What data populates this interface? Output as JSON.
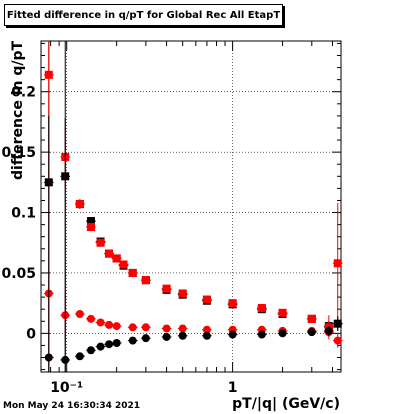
{
  "chart_data": {
    "type": "scatter",
    "title": "Fitted difference in q/pT for Global Rec All EtapT",
    "xlabel": "pT/|q| (GeV/c)",
    "ylabel": "difference in q/pT",
    "x_scale": "log",
    "xlim": [
      0.07,
      4.5
    ],
    "ylim": [
      -0.032,
      0.242
    ],
    "grid": true,
    "x_tick_labels": [
      "10⁻¹",
      "1"
    ],
    "y_tick_labels": [
      "0",
      "0.05",
      "0.1",
      "0.15",
      "0.2"
    ],
    "series": [
      {
        "color": "#000000",
        "marker": "square",
        "x": [
          0.078,
          0.098,
          0.12,
          0.14,
          0.16,
          0.18,
          0.2,
          0.22,
          0.25,
          0.3,
          0.4,
          0.5,
          0.7,
          1.0,
          1.5,
          2.0,
          3.0,
          3.8,
          4.3
        ],
        "y": [
          0.125,
          0.13,
          0.107,
          0.093,
          0.076,
          0.066,
          0.062,
          0.056,
          0.05,
          0.044,
          0.036,
          0.032,
          0.027,
          0.024,
          0.02,
          0.016,
          0.012,
          0.006,
          0.008
        ],
        "yerr": [
          0.2,
          0.2,
          0.004,
          0.003,
          0.002,
          0.002,
          0.002,
          0.002,
          0.001,
          0.001,
          0.001,
          0.001,
          0.001,
          0.001,
          0.001,
          0.001,
          0.002,
          0.004,
          0.006
        ]
      },
      {
        "color": "#ff0000",
        "marker": "square",
        "x": [
          0.078,
          0.098,
          0.12,
          0.14,
          0.16,
          0.18,
          0.2,
          0.22,
          0.25,
          0.3,
          0.4,
          0.5,
          0.7,
          1.0,
          1.5,
          2.0,
          3.0,
          3.8,
          4.3
        ],
        "y": [
          0.214,
          0.146,
          0.107,
          0.088,
          0.075,
          0.066,
          0.062,
          0.057,
          0.05,
          0.044,
          0.037,
          0.033,
          0.028,
          0.025,
          0.021,
          0.017,
          0.012,
          0.005,
          0.058
        ],
        "yerr": [
          0.1,
          0.025,
          0.004,
          0.003,
          0.002,
          0.002,
          0.002,
          0.002,
          0.001,
          0.001,
          0.001,
          0.001,
          0.001,
          0.001,
          0.001,
          0.002,
          0.003,
          0.01,
          0.05
        ]
      },
      {
        "color": "#ff0000",
        "marker": "circle",
        "x": [
          0.078,
          0.098,
          0.12,
          0.14,
          0.16,
          0.18,
          0.2,
          0.25,
          0.3,
          0.4,
          0.5,
          0.7,
          1.0,
          1.5,
          2.0,
          3.0,
          3.8,
          4.3
        ],
        "y": [
          0.033,
          0.015,
          0.016,
          0.012,
          0.009,
          0.007,
          0.006,
          0.005,
          0.005,
          0.004,
          0.004,
          0.003,
          0.003,
          0.003,
          0.002,
          0.002,
          0.001,
          -0.006
        ],
        "yerr": [
          0.08,
          0.02,
          0.003,
          0.002,
          0.002,
          0.001,
          0.001,
          0.001,
          0.001,
          0.001,
          0.001,
          0.001,
          0.001,
          0.001,
          0.001,
          0.002,
          0.004,
          0.006
        ]
      },
      {
        "color": "#000000",
        "marker": "circle",
        "x": [
          0.078,
          0.098,
          0.12,
          0.14,
          0.16,
          0.18,
          0.2,
          0.25,
          0.3,
          0.4,
          0.5,
          0.7,
          1.0,
          1.5,
          2.0,
          3.0,
          3.8,
          4.3
        ],
        "y": [
          -0.02,
          -0.022,
          -0.019,
          -0.014,
          -0.011,
          -0.009,
          -0.008,
          -0.006,
          -0.004,
          -0.003,
          -0.002,
          -0.002,
          -0.001,
          -0.001,
          0.0,
          0.001,
          0.002,
          0.008
        ],
        "yerr": [
          0.2,
          0.2,
          0.002,
          0.002,
          0.001,
          0.001,
          0.001,
          0.001,
          0.001,
          0.001,
          0.001,
          0.001,
          0.001,
          0.001,
          0.001,
          0.002,
          0.004,
          0.006
        ]
      }
    ]
  },
  "datestamp": "Mon May 24 16:30:34 2021"
}
